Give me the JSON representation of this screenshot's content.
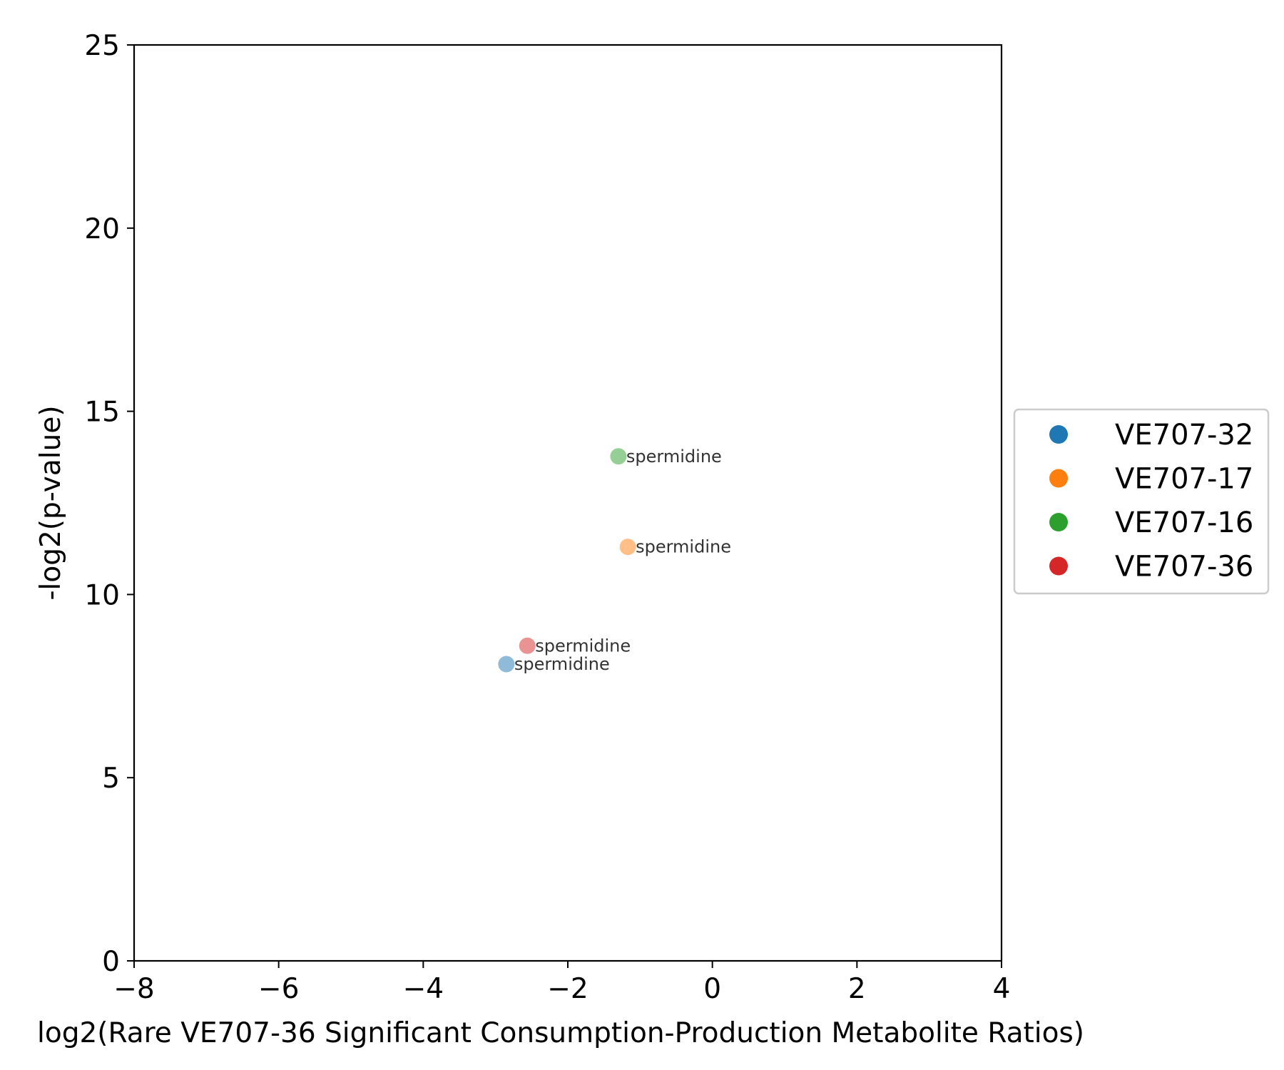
{
  "chart_data": {
    "type": "scatter",
    "title": "",
    "xlabel": "log2(Rare VE707-36 Significant Consumption-Production Metabolite Ratios)",
    "ylabel": "-log2(p-value)",
    "xlim": [
      -8,
      4
    ],
    "ylim": [
      0,
      25
    ],
    "xticks": [
      -8,
      -6,
      -4,
      -2,
      0,
      2,
      4
    ],
    "xtick_labels": [
      "−8",
      "−6",
      "−4",
      "−2",
      "0",
      "2",
      "4"
    ],
    "yticks": [
      0,
      5,
      10,
      15,
      20,
      25
    ],
    "ytick_labels": [
      "0",
      "5",
      "10",
      "15",
      "20",
      "25"
    ],
    "grid": false,
    "legend_position": "right, outside plot",
    "series": [
      {
        "name": "VE707-32",
        "color": "#1f77b4",
        "points": [
          {
            "x": -2.85,
            "y": 8.1,
            "label": "spermidine"
          }
        ]
      },
      {
        "name": "VE707-17",
        "color": "#ff7f0e",
        "points": [
          {
            "x": -1.17,
            "y": 11.3,
            "label": "spermidine"
          }
        ]
      },
      {
        "name": "VE707-16",
        "color": "#2ca02c",
        "points": [
          {
            "x": -1.3,
            "y": 13.77,
            "label": "spermidine"
          }
        ]
      },
      {
        "name": "VE707-36",
        "color": "#d62728",
        "points": [
          {
            "x": -2.56,
            "y": 8.6,
            "label": "spermidine"
          }
        ]
      }
    ]
  }
}
